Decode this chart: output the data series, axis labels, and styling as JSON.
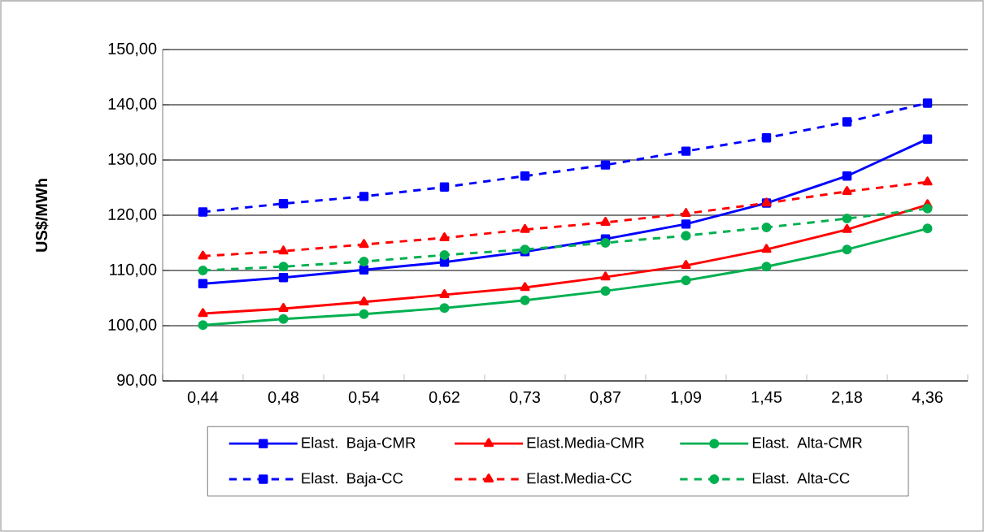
{
  "chart_data": {
    "type": "line",
    "ylabel": "**US$/MWh**",
    "categories": [
      "0,44",
      "0,48",
      "0,54",
      "0,62",
      "0,73",
      "0,87",
      "1,09",
      "1,45",
      "2,18",
      "4,36"
    ],
    "ylim": [
      90,
      150
    ],
    "yticks": [
      {
        "value": 90,
        "label": "90,00"
      },
      {
        "value": 100,
        "label": "100,00"
      },
      {
        "value": 110,
        "label": "110,00"
      },
      {
        "value": 120,
        "label": "120,00"
      },
      {
        "value": 130,
        "label": "130,00"
      },
      {
        "value": 140,
        "label": "140,00"
      },
      {
        "value": 150,
        "label": "150,00"
      }
    ],
    "grid": "y",
    "legend": "bottom",
    "series": [
      {
        "name": "Elast.  Baja-CMR",
        "color": "#0000ff",
        "marker": "square",
        "line_style": "solid",
        "values": [
          107.6,
          108.7,
          110.1,
          111.5,
          113.4,
          115.7,
          118.4,
          122.2,
          127.1,
          133.8
        ]
      },
      {
        "name": "Elast.Media-CMR",
        "color": "#ff0000",
        "marker": "triangle",
        "line_style": "solid",
        "values": [
          102.2,
          103.1,
          104.3,
          105.6,
          106.9,
          108.8,
          110.9,
          113.8,
          117.4,
          121.9
        ]
      },
      {
        "name": "Elast.  Alta-CMR",
        "color": "#00b050",
        "marker": "circle",
        "line_style": "solid",
        "values": [
          100.1,
          101.2,
          102.1,
          103.2,
          104.6,
          106.3,
          108.2,
          110.7,
          113.8,
          117.6
        ]
      },
      {
        "name": "Elast.  Baja-CC",
        "color": "#0000ff",
        "marker": "square",
        "line_style": "dashed",
        "values": [
          120.6,
          122.1,
          123.4,
          125.1,
          127.1,
          129.1,
          131.6,
          134.0,
          136.9,
          140.3
        ]
      },
      {
        "name": "Elast.Media-CC",
        "color": "#ff0000",
        "marker": "triangle",
        "line_style": "dashed",
        "values": [
          112.6,
          113.5,
          114.7,
          115.9,
          117.4,
          118.7,
          120.3,
          122.2,
          124.3,
          126.0
        ]
      },
      {
        "name": "Elast.  Alta-CC",
        "color": "#00b050",
        "marker": "circle",
        "line_style": "dashed",
        "values": [
          110.0,
          110.7,
          111.6,
          112.8,
          113.8,
          115.0,
          116.3,
          117.8,
          119.4,
          121.2
        ]
      }
    ]
  }
}
